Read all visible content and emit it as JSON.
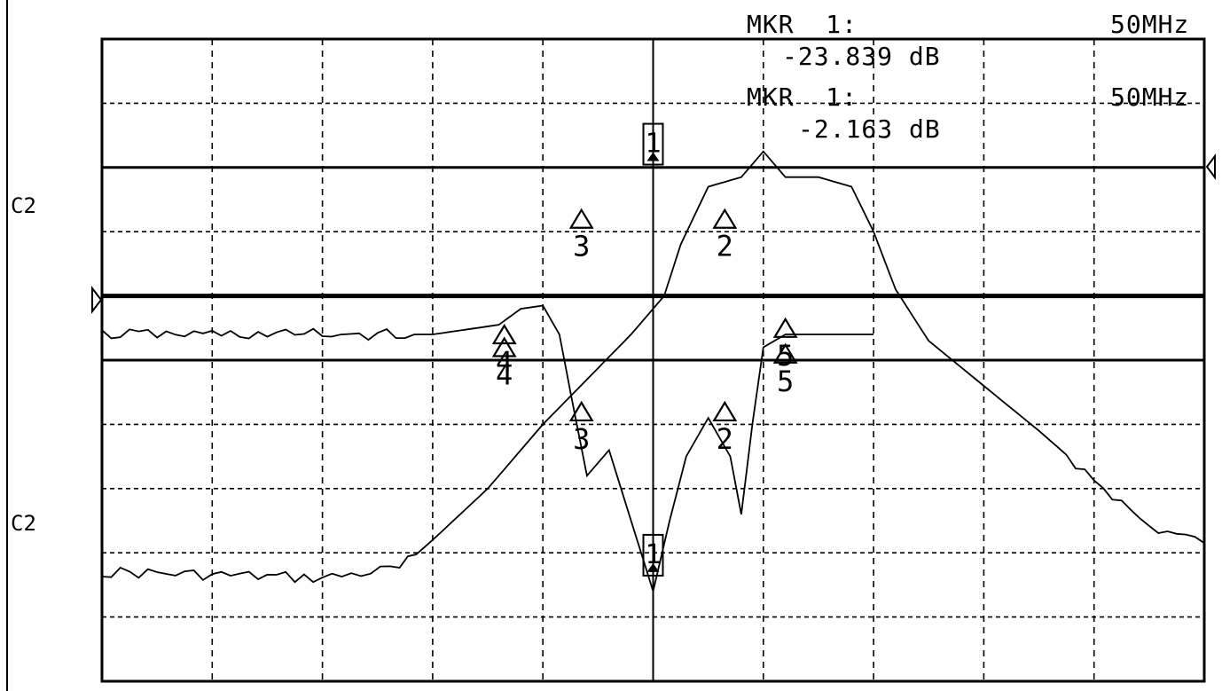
{
  "readout": {
    "marker_1_label": "MKR  1:",
    "marker_1_freq": "50MHz",
    "marker_1_value": "-23.839 dB",
    "marker_2_label": "MKR  1:",
    "marker_2_freq": "50MHz",
    "marker_2_value": "-2.163 dB"
  },
  "channel_labels": {
    "upper": "C2",
    "lower": "C2"
  },
  "chart_data": {
    "type": "line",
    "x_divisions": 10,
    "y_divisions": 10,
    "grid": true,
    "center_marker_frequency": "50MHz",
    "series": [
      {
        "values": [
          [
            0.0,
            8.3
          ],
          [
            1.0,
            8.35
          ],
          [
            2.0,
            8.4
          ],
          [
            2.7,
            8.25
          ],
          [
            3.0,
            7.8
          ],
          [
            3.5,
            7.0
          ],
          [
            4.0,
            6.0
          ],
          [
            4.4,
            5.3
          ],
          [
            4.8,
            4.6
          ],
          [
            5.1,
            4.0
          ],
          [
            5.25,
            3.2
          ],
          [
            5.5,
            2.3
          ],
          [
            5.8,
            2.15
          ],
          [
            6.0,
            1.75
          ],
          [
            6.2,
            2.15
          ],
          [
            6.5,
            2.15
          ],
          [
            6.8,
            2.3
          ],
          [
            7.0,
            3.0
          ],
          [
            7.2,
            3.9
          ],
          [
            7.5,
            4.7
          ],
          [
            8.0,
            5.4
          ],
          [
            8.5,
            6.1
          ],
          [
            9.0,
            6.85
          ],
          [
            9.5,
            7.6
          ],
          [
            10.0,
            7.85
          ]
        ],
        "markers": [
          {
            "label": "1",
            "x": 5.0,
            "y": 1.9
          },
          {
            "label": "2",
            "x": 5.65,
            "y": 2.8
          },
          {
            "label": "3",
            "x": 4.35,
            "y": 2.8
          },
          {
            "label": "4",
            "x": 3.65,
            "y": 4.8
          },
          {
            "label": "5",
            "x": 6.2,
            "y": 4.9
          }
        ]
      },
      {
        "values": [
          [
            0.0,
            4.6
          ],
          [
            3.0,
            4.6
          ],
          [
            3.6,
            4.45
          ],
          [
            3.8,
            4.2
          ],
          [
            4.0,
            4.15
          ],
          [
            4.15,
            4.6
          ],
          [
            4.25,
            5.5
          ],
          [
            4.4,
            6.8
          ],
          [
            4.6,
            6.4
          ],
          [
            4.8,
            7.5
          ],
          [
            5.0,
            8.6
          ],
          [
            5.15,
            7.5
          ],
          [
            5.3,
            6.5
          ],
          [
            5.5,
            5.9
          ],
          [
            5.7,
            6.5
          ],
          [
            5.8,
            7.4
          ],
          [
            5.9,
            6.0
          ],
          [
            6.0,
            4.8
          ],
          [
            6.2,
            4.6
          ],
          [
            6.5,
            4.6
          ],
          [
            7.0,
            4.6
          ]
        ],
        "markers": [
          {
            "label": "1",
            "x": 5.0,
            "y": 8.3
          },
          {
            "label": "2",
            "x": 5.65,
            "y": 5.8
          },
          {
            "label": "3",
            "x": 4.35,
            "y": 5.8
          },
          {
            "label": "4",
            "x": 3.65,
            "y": 4.6
          },
          {
            "label": "5",
            "x": 6.2,
            "y": 4.5
          }
        ]
      }
    ],
    "reference_lines": [
      {
        "y": 2.0,
        "weight": "medium"
      },
      {
        "y": 4.0,
        "weight": "heavy"
      },
      {
        "y": 5.0,
        "weight": "medium"
      }
    ]
  }
}
